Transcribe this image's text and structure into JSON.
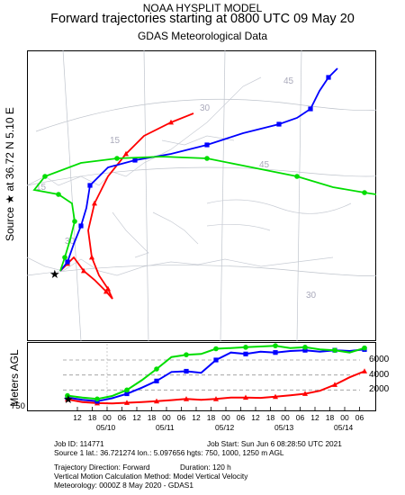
{
  "header": {
    "model": "NOAA HYSPLIT MODEL",
    "title": "Forward trajectories starting at 0800 UTC 09 May 20",
    "subtitle": "GDAS Meteorological Data"
  },
  "source_label": "Source ★ at 36.72 N 5.10 E",
  "height_axis_label": "Meters AGL",
  "info": {
    "job_id": "Job ID: 114771",
    "job_start": "Job Start: Sun Jun  6 08:28:50 UTC 2021",
    "source1": "Source 1 lat.: 36.721274  lon.: 5.097656  hgts: 750, 1000, 1250 m AGL",
    "traj_dir": "Trajectory Direction: Forward",
    "duration": "Duration: 120 h",
    "vmotion": "Vertical Motion Calculation Method:     Model Vertical Velocity",
    "meteo": "Meteorology: 0000Z  8 May 2020 - GDAS1"
  },
  "map_grid_labels": [
    "45",
    "30",
    "15",
    "15",
    "30",
    "45",
    "30"
  ],
  "chart_data": {
    "type": "line",
    "title": "Forward trajectories starting at 0800 UTC 09 May 20",
    "xlabel": "",
    "ylabel": "Meters AGL",
    "x_ticks": [
      "12",
      "18",
      "00",
      "06",
      "12",
      "18",
      "00",
      "06",
      "12",
      "18",
      "00",
      "06",
      "12",
      "18",
      "00",
      "06",
      "12",
      "18",
      "00",
      "06"
    ],
    "date_labels": [
      "05/10",
      "05/11",
      "05/12",
      "05/13",
      "05/14"
    ],
    "y_ticks": [
      2000,
      4000,
      6000
    ],
    "start_height_label": "750",
    "ylim": [
      0,
      7800
    ],
    "xlim_hours": [
      -4,
      120
    ],
    "x_hours": [
      0,
      6,
      12,
      18,
      24,
      30,
      36,
      42,
      48,
      54,
      60,
      66,
      72,
      78,
      84,
      90,
      96,
      102,
      108,
      114,
      120
    ],
    "grid": true,
    "series": [
      {
        "color": "#ff0000",
        "marker": "triangle",
        "values": [
          750,
          400,
          250,
          200,
          300,
          400,
          500,
          650,
          800,
          700,
          800,
          1000,
          1000,
          950,
          1100,
          1300,
          1500,
          1900,
          2700,
          3700,
          4500
        ]
      },
      {
        "color": "#0000ff",
        "marker": "square",
        "values": [
          1000,
          700,
          500,
          900,
          1500,
          2300,
          3200,
          4400,
          4500,
          4300,
          6000,
          7000,
          6800,
          7100,
          7000,
          7200,
          7300,
          7100,
          7300,
          7200,
          7400
        ]
      },
      {
        "color": "#00dd00",
        "marker": "circle",
        "values": [
          1250,
          1000,
          800,
          1200,
          2000,
          3300,
          4800,
          6400,
          6700,
          6800,
          7500,
          7600,
          7700,
          7800,
          7900,
          7600,
          7700,
          7400,
          7300,
          7000,
          7600
        ]
      }
    ]
  }
}
